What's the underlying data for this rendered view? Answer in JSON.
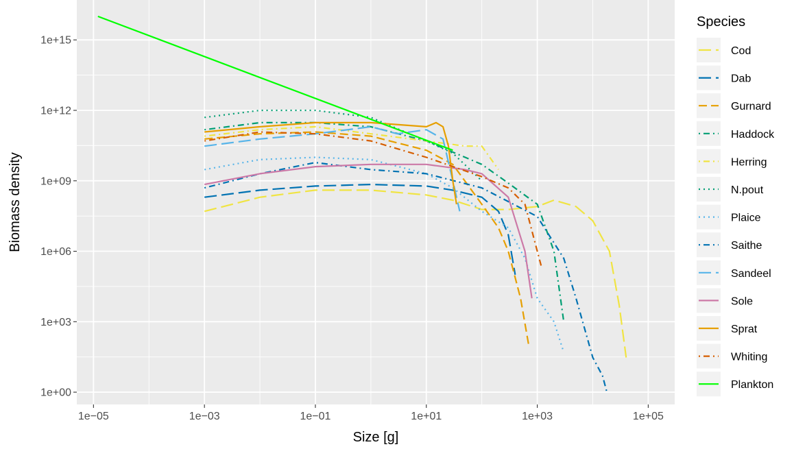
{
  "chart_data": {
    "type": "line",
    "xlabel": "Size [g]",
    "ylabel": "Biomass density",
    "x_scale": "log10",
    "y_scale": "log10",
    "xlim": [
      5e-06,
      300000
    ],
    "ylim": [
      0.3,
      5e+16
    ],
    "x_ticks": [
      1e-05,
      0.001,
      0.1,
      10,
      1000,
      100000
    ],
    "x_tick_labels": [
      "1e−05",
      "1e−03",
      "1e−01",
      "1e+01",
      "1e+03",
      "1e+05"
    ],
    "y_ticks": [
      1,
      1000,
      1000000,
      1000000000,
      1000000000000,
      1000000000000000
    ],
    "y_tick_labels": [
      "1e+00",
      "1e+03",
      "1e+06",
      "1e+09",
      "1e+12",
      "1e+15"
    ],
    "grid": true,
    "legend_title": "Species",
    "legend_position": "right",
    "series": [
      {
        "name": "Cod",
        "color": "#F0E442",
        "dash": "long-dash",
        "x": [
          0.001,
          0.01,
          0.1,
          1,
          10,
          30,
          100,
          300,
          1000,
          2000,
          5000,
          10000,
          20000,
          30000,
          40000
        ],
        "y": [
          50000000.0,
          200000000.0,
          400000000.0,
          400000000.0,
          250000000.0,
          150000000.0,
          60000000.0,
          60000000.0,
          80000000.0,
          150000000.0,
          80000000.0,
          20000000.0,
          1000000.0,
          5000,
          30
        ]
      },
      {
        "name": "Dab",
        "color": "#0072B2",
        "dash": "long-dash",
        "x": [
          0.001,
          0.01,
          0.1,
          1,
          10,
          30,
          100,
          200,
          300,
          400
        ],
        "y": [
          200000000.0,
          400000000.0,
          600000000.0,
          700000000.0,
          600000000.0,
          400000000.0,
          200000000.0,
          50000000.0,
          5000000.0,
          100000.0
        ]
      },
      {
        "name": "Gurnard",
        "color": "#E69F00",
        "dash": "dash",
        "x": [
          0.001,
          0.01,
          0.1,
          1,
          10,
          30,
          100,
          200,
          300,
          500,
          700
        ],
        "y": [
          60000000000.0,
          100000000000.0,
          120000000000.0,
          80000000000.0,
          20000000000.0,
          5000000000.0,
          100000000.0,
          10000000.0,
          1000000.0,
          10000.0,
          100
        ]
      },
      {
        "name": "Haddock",
        "color": "#009E73",
        "dash": "dot-dash",
        "x": [
          0.001,
          0.01,
          0.1,
          1,
          10,
          100,
          300,
          1000,
          2000,
          3000
        ],
        "y": [
          150000000000.0,
          300000000000.0,
          300000000000.0,
          200000000000.0,
          50000000000.0,
          5000000000.0,
          800000000.0,
          100000000.0,
          1000000.0,
          1000.0
        ]
      },
      {
        "name": "Herring",
        "color": "#F0E442",
        "dash": "dot-dash",
        "x": [
          0.001,
          0.01,
          0.1,
          1,
          10,
          50,
          100,
          200
        ],
        "y": [
          80000000000.0,
          150000000000.0,
          200000000000.0,
          100000000000.0,
          50000000000.0,
          30000000000.0,
          30000000000.0,
          3000000000.0
        ]
      },
      {
        "name": "N.pout",
        "color": "#009E73",
        "dash": "dot",
        "x": [
          0.001,
          0.01,
          0.1,
          1,
          10,
          30,
          100
        ],
        "y": [
          500000000000.0,
          1000000000000.0,
          1000000000000.0,
          500000000000.0,
          50000000000.0,
          15000000000.0,
          1000000000.0
        ]
      },
      {
        "name": "Plaice",
        "color": "#56B4E9",
        "dash": "dot",
        "x": [
          0.001,
          0.01,
          0.1,
          1,
          10,
          30,
          100,
          300,
          600,
          1000,
          2000,
          3000
        ],
        "y": [
          3000000000.0,
          8000000000.0,
          10000000000.0,
          8000000000.0,
          2000000000.0,
          500000000.0,
          50000000.0,
          10000000.0,
          500000.0,
          10000.0,
          1000.0,
          50
        ]
      },
      {
        "name": "Saithe",
        "color": "#0072B2",
        "dash": "dot-dash",
        "x": [
          0.001,
          0.01,
          0.1,
          1,
          10,
          100,
          1000,
          3000,
          5000,
          10000,
          15000,
          18000
        ],
        "y": [
          500000000.0,
          2000000000.0,
          6000000000.0,
          3000000000.0,
          2000000000.0,
          500000000.0,
          30000000.0,
          500000.0,
          10000.0,
          30,
          5,
          1
        ]
      },
      {
        "name": "Sandeel",
        "color": "#56B4E9",
        "dash": "long-dash",
        "x": [
          0.001,
          0.01,
          0.1,
          1,
          3,
          10,
          20,
          30,
          40
        ],
        "y": [
          30000000000.0,
          60000000000.0,
          100000000000.0,
          200000000000.0,
          100000000000.0,
          150000000000.0,
          60000000000.0,
          1000000000.0,
          50000000.0
        ]
      },
      {
        "name": "Sole",
        "color": "#CC79A7",
        "dash": "solid",
        "x": [
          0.001,
          0.01,
          0.1,
          1,
          10,
          50,
          100,
          300,
          600,
          800
        ],
        "y": [
          700000000.0,
          2000000000.0,
          4000000000.0,
          5000000000.0,
          5000000000.0,
          3000000000.0,
          2000000000.0,
          200000000.0,
          1000000.0,
          10000.0
        ]
      },
      {
        "name": "Sprat",
        "color": "#E69F00",
        "dash": "solid",
        "x": [
          0.001,
          0.01,
          0.1,
          1,
          10,
          15,
          20,
          25,
          30,
          35
        ],
        "y": [
          120000000000.0,
          200000000000.0,
          300000000000.0,
          300000000000.0,
          200000000000.0,
          300000000000.0,
          200000000000.0,
          30000000000.0,
          1000000000.0,
          100000000.0
        ]
      },
      {
        "name": "Whiting",
        "color": "#D55E00",
        "dash": "dot-dash",
        "x": [
          0.001,
          0.01,
          0.1,
          1,
          10,
          100,
          300,
          600,
          1000,
          1200
        ],
        "y": [
          50000000000.0,
          120000000000.0,
          100000000000.0,
          50000000000.0,
          10000000000.0,
          1500000000.0,
          500000000.0,
          100000000.0,
          1000000.0,
          200000.0
        ]
      },
      {
        "name": "Plankton",
        "color": "#00FF00",
        "dash": "solid",
        "x": [
          1.2e-05,
          30
        ],
        "y": [
          1e+16,
          20000000000.0
        ]
      }
    ]
  }
}
